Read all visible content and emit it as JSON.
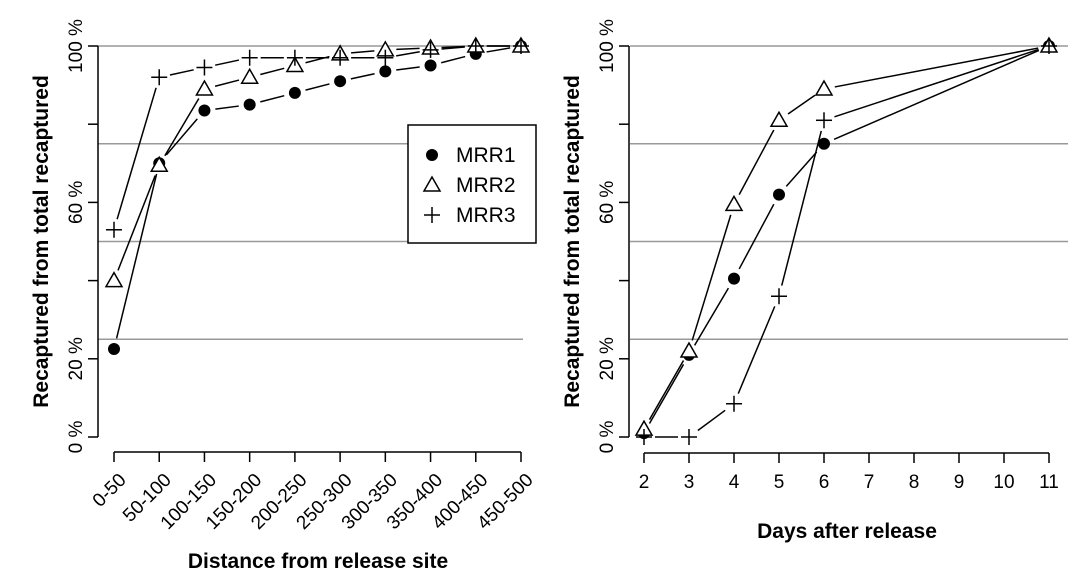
{
  "chart_data": [
    {
      "type": "line",
      "xlabel": "Distance from release site",
      "ylabel": "Recaptured from total recaptured",
      "categories": [
        "0-50",
        "50-100",
        "100-150",
        "150-200",
        "200-250",
        "250-300",
        "300-350",
        "350-400",
        "400-450",
        "450-500"
      ],
      "ylim": [
        0,
        100
      ],
      "y_ticks": [
        "0 %",
        "20 %",
        "60 %",
        "100 %"
      ],
      "y_tick_values": [
        0,
        20,
        60,
        100
      ],
      "gridlines_y": [
        25,
        50,
        75,
        100
      ],
      "legend_position": "center-right",
      "series": [
        {
          "name": "MRR1",
          "marker": "filled-circle",
          "values": [
            22.5,
            70,
            83.5,
            85,
            88,
            91,
            93.5,
            95,
            98,
            100
          ]
        },
        {
          "name": "MRR2",
          "marker": "open-triangle",
          "values": [
            40,
            69.5,
            89,
            92,
            95,
            98,
            99,
            99.5,
            100,
            100
          ]
        },
        {
          "name": "MRR3",
          "marker": "plus",
          "values": [
            53,
            92,
            94.5,
            97,
            97,
            97,
            97,
            99,
            100,
            100
          ]
        }
      ]
    },
    {
      "type": "line",
      "xlabel": "Days after release",
      "ylabel": "Recaptured from total recaptured",
      "x": [
        2,
        3,
        4,
        5,
        6,
        7,
        8,
        9,
        10,
        11
      ],
      "xlim": [
        2,
        11
      ],
      "ylim": [
        0,
        100
      ],
      "y_ticks": [
        "0 %",
        "20 %",
        "60 %",
        "100 %"
      ],
      "y_tick_values": [
        0,
        20,
        60,
        100
      ],
      "gridlines_y": [
        25,
        50,
        75,
        100
      ],
      "series": [
        {
          "name": "MRR1",
          "marker": "filled-circle",
          "x": [
            2,
            3,
            4,
            5,
            6,
            11
          ],
          "values": [
            1,
            21,
            40.5,
            62,
            75,
            100
          ]
        },
        {
          "name": "MRR2",
          "marker": "open-triangle",
          "x": [
            2,
            3,
            4,
            5,
            6,
            11
          ],
          "values": [
            2,
            22,
            59.5,
            81,
            89,
            100
          ]
        },
        {
          "name": "MRR3",
          "marker": "plus",
          "x": [
            2,
            3,
            4,
            5,
            6,
            11
          ],
          "values": [
            0,
            0,
            8.5,
            36,
            81,
            100
          ]
        }
      ]
    }
  ],
  "colors": {
    "axis": "#000000",
    "grid": "#999999",
    "marks": "#000000"
  }
}
